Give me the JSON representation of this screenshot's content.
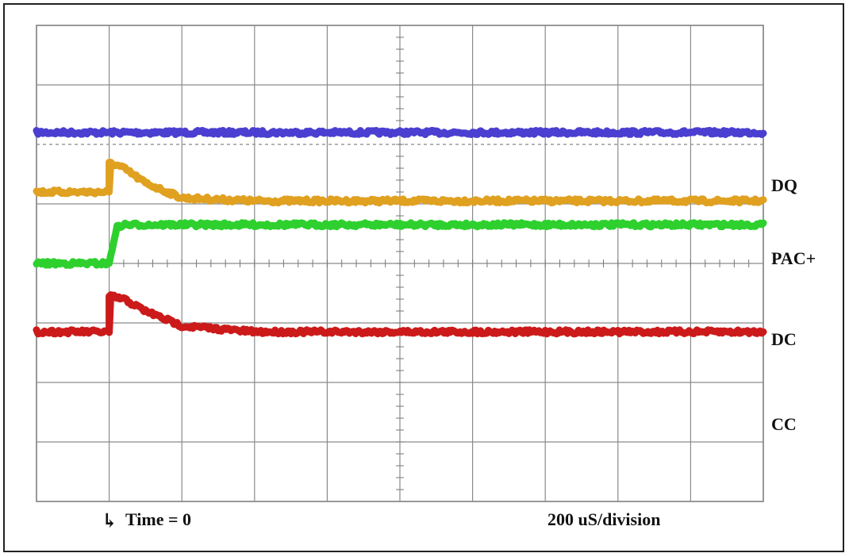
{
  "chart_data": {
    "type": "line",
    "title": "",
    "x_axis": {
      "divisions": 10,
      "division_label": "200 uS/division",
      "time_zero_label": "Time = 0",
      "unit": "uS",
      "range": [
        -200,
        1800
      ],
      "time_zero": 0
    },
    "y_axis": {
      "divisions": 8,
      "range": [
        -4,
        4
      ]
    },
    "grid": true,
    "series": [
      {
        "name": "DQ",
        "color": "#4a3fd0",
        "points": [
          [
            -200,
            2.2
          ],
          [
            1800,
            2.2
          ]
        ]
      },
      {
        "name": "PAC+",
        "color": "#e0a020",
        "points": [
          [
            -200,
            1.2
          ],
          [
            0,
            1.2
          ],
          [
            0,
            1.7
          ],
          [
            40,
            1.6
          ],
          [
            100,
            1.35
          ],
          [
            200,
            1.1
          ],
          [
            400,
            1.05
          ],
          [
            1800,
            1.05
          ]
        ]
      },
      {
        "name": "DC",
        "color": "#2ed02e",
        "points": [
          [
            -200,
            0.0
          ],
          [
            0,
            0.0
          ],
          [
            20,
            0.6
          ],
          [
            40,
            0.65
          ],
          [
            100,
            0.65
          ],
          [
            1800,
            0.65
          ]
        ]
      },
      {
        "name": "CC",
        "color": "#cc1a1a",
        "points": [
          [
            -200,
            -1.15
          ],
          [
            0,
            -1.15
          ],
          [
            0,
            -0.55
          ],
          [
            40,
            -0.6
          ],
          [
            100,
            -0.8
          ],
          [
            200,
            -1.05
          ],
          [
            400,
            -1.15
          ],
          [
            1800,
            -1.15
          ]
        ]
      }
    ]
  }
}
